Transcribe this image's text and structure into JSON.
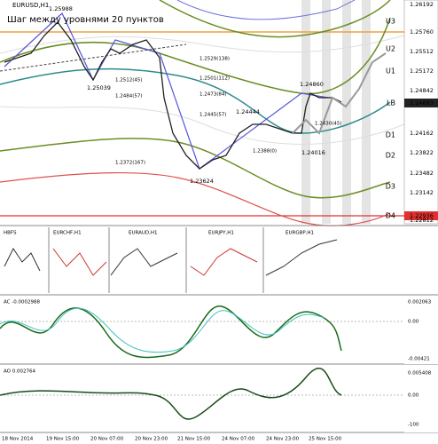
{
  "main": {
    "symbol": "EURUSD,H1",
    "note": "Шаг между уровнями 20 пунктов",
    "price_labels": [
      "1.25988",
      "1.25039",
      "1.24860",
      "1.24444",
      "1.24016",
      "1.23624"
    ],
    "level_labels": [
      "1.2529(138)",
      "1.2501(112)",
      "1.2473(84)",
      "1.2445(57)",
      "1.2512(45)",
      "1.2484(57)",
      "1.2372(167)",
      "1.2388(0)",
      "1.2430(45)"
    ],
    "band_labels": [
      "U3",
      "U2",
      "U1",
      "LB",
      "D1",
      "D2",
      "D3",
      "D4"
    ],
    "axis": [
      "1.26192",
      "1.25760",
      "1.25512",
      "1.25172",
      "1.24842",
      "1.24683",
      "1.24162",
      "1.23822",
      "1.23482",
      "1.23142",
      "1.22936",
      "1.22812"
    ]
  },
  "mini": {
    "titles": [
      "HBFS",
      "EURCHF,H1",
      "EURAUD,H1",
      "EURJPY,H1",
      "EURGBP,H1"
    ]
  },
  "ac": {
    "title": "AC -0.0002988",
    "axis": [
      "0.002063",
      "0.00",
      "-0.00421"
    ]
  },
  "ao": {
    "title": "AO 0.002764",
    "axis": [
      "0.005408",
      "0.00",
      "-100"
    ]
  },
  "dates": [
    "18 Nov 2014",
    "19 Nov 15:00",
    "20 Nov 07:00",
    "20 Nov 23:00",
    "21 Nov 15:00",
    "24 Nov 07:00",
    "24 Nov 23:00",
    "25 Nov 15:00"
  ]
}
